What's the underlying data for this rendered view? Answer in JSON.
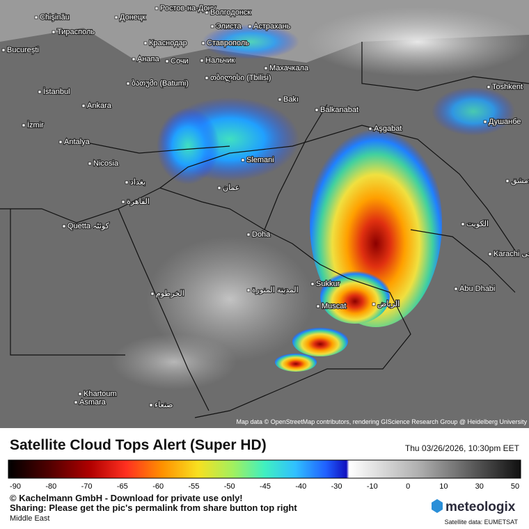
{
  "map": {
    "attribution": "Map data © OpenStreetMap contributors, rendering GIScience Research Group @ Heidelberg University",
    "labels": [
      "Chişinău",
      "Донецк",
      "Ростов-на-Дону",
      "Волгодонск",
      "Тирасполь",
      "Элиста",
      "Астрахань",
      "București",
      "Краснодар",
      "Ставрополь",
      "Анапа",
      "Сочи",
      "Нальчик",
      "Махачкала",
      "İstanbul",
      "ბათუმი (Batumi)",
      "თბილისი (Tbilisi)",
      "Bakı",
      "Ankara",
      "Balkanabat",
      "Toshkent",
      "İzmir",
      "Aşgabat",
      "Душанбе",
      "Antalya",
      "Nicosia",
      "Slemani",
      "دمشق",
      "بغداد",
      "عمان",
      "القاهرة",
      "Quetta کوئٹہ",
      "الكويت",
      "Doha",
      "Sukkur",
      "Karachi کراچی",
      "Abu Dhabi",
      "Muscat",
      "الرياض",
      "المدينة المنورة",
      "الخرطوم",
      "Khartoum",
      "Asmara",
      "صنعاء"
    ]
  },
  "footer": {
    "title": "Satellite Cloud Tops Alert (Super HD)",
    "datetime": "Thu 03/26/2026, 10:30pm EET",
    "legend_ticks": [
      -90,
      -80,
      -70,
      -65,
      -60,
      -55,
      -50,
      -45,
      -40,
      -30,
      -10,
      0,
      10,
      30,
      50
    ],
    "copyright": "© Kachelmann GmbH - Download for private use only!",
    "sharing": "Sharing: Please get the pic's permalink from share button top right",
    "region": "Middle East",
    "brand": "meteologix",
    "source": "Satellite data: EUMETSAT"
  }
}
